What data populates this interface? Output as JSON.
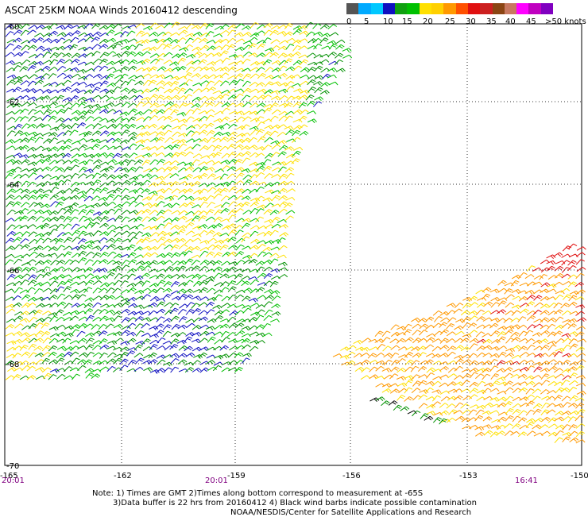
{
  "title": "ASCAT 25KM NOAA Winds 20160412 descending",
  "legend": {
    "colors": [
      "#555555",
      "#00aaff",
      "#00c8ff",
      "#1010c0",
      "#10a010",
      "#00c000",
      "#ffe000",
      "#ffd000",
      "#ff9900",
      "#ff5000",
      "#e01010",
      "#cc2020",
      "#8b4513",
      "#c87860",
      "#ff00ff",
      "#c000c0",
      "#8000c0"
    ],
    "labels": [
      "0",
      "5",
      "10",
      "15",
      "20",
      "25",
      "30",
      "35",
      "40",
      "45",
      ">50 knots"
    ]
  },
  "map": {
    "lat_labels": [
      "-60",
      "-62",
      "-64",
      "-66",
      "-68",
      "-70"
    ],
    "lon_labels": [
      "-165",
      "-162",
      "-159",
      "-156",
      "-153",
      "-150"
    ],
    "time_labels": [
      "20:01",
      "20:01",
      "16:41"
    ],
    "barb_colors": {
      "blue": "#1010c0",
      "green": "#009000",
      "green_light": "#00c000",
      "yellow": "#ffe000",
      "orange": "#ff9900",
      "red": "#e01010",
      "black": "#000000"
    }
  },
  "footer": {
    "line1": "Note: 1) Times are GMT 2)Times along bottom correspond to measurement at -65S",
    "line2": "3)Data buffer is 22 hrs from 20160412 4) Black wind barbs indicate possible contamination",
    "line3": "NOAA/NESDIS/Center for Satellite Applications and Research"
  }
}
